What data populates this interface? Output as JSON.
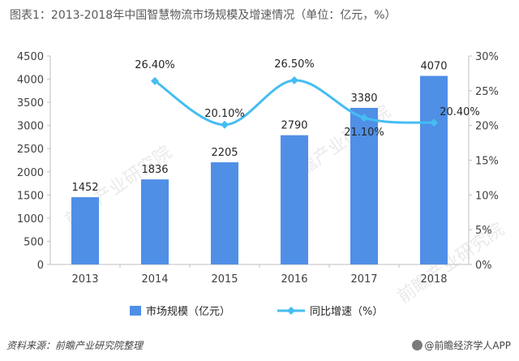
{
  "chart_data": {
    "type": "bar",
    "title": "图表1：2013-2018年中国智慧物流市场规模及增速情况（单位：亿元，%）",
    "categories": [
      "2013",
      "2014",
      "2015",
      "2016",
      "2017",
      "2018"
    ],
    "series": [
      {
        "name": "市场规模（亿元）",
        "type": "bar",
        "axis": "left",
        "values": [
          1452,
          1836,
          2205,
          2790,
          3380,
          4070
        ],
        "labels": [
          "1452",
          "1836",
          "2205",
          "2790",
          "3380",
          "4070"
        ]
      },
      {
        "name": "同比增速（%）",
        "type": "line",
        "axis": "right",
        "values": [
          null,
          26.4,
          20.1,
          26.5,
          21.1,
          20.4
        ],
        "labels": [
          "",
          "26.40%",
          "20.10%",
          "26.50%",
          "21.10%",
          "20.40%"
        ]
      }
    ],
    "yleft": {
      "min": 0,
      "max": 4500,
      "ticks": [
        "0",
        "500",
        "1000",
        "1500",
        "2000",
        "2500",
        "3000",
        "3500",
        "4000",
        "4500"
      ]
    },
    "yright": {
      "min": 0,
      "max": 30,
      "ticks": [
        "0%",
        "5%",
        "10%",
        "15%",
        "20%",
        "25%",
        "30%"
      ]
    },
    "grid": false,
    "legend": "bottom",
    "colors": {
      "bar": "#4f8fe6",
      "line": "#45bdf2",
      "marker": "#45bdf2"
    }
  },
  "watermark": "前瞻产业研究院",
  "source_note": "资料来源：前瞻产业研究院整理",
  "brand": "@前瞻经济学人APP"
}
